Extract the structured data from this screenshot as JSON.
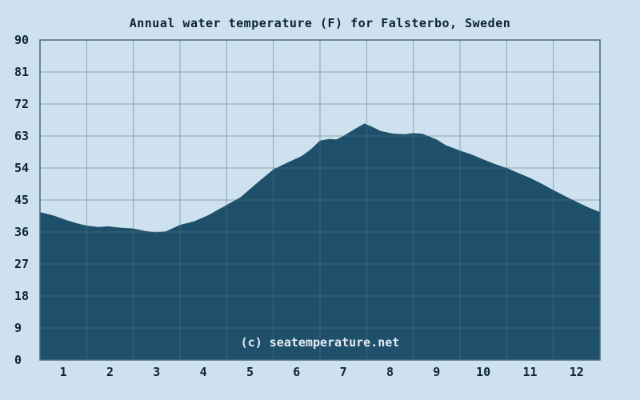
{
  "title": "Annual water temperature (F) for Falsterbo, Sweden",
  "watermark": "(c) seatemperature.net",
  "colors": {
    "page_background": "#cde2ee",
    "area_fill": "#1f506b",
    "gridline": "#5a7382",
    "gridline_opacity": 0.55,
    "frame": "#476b82",
    "label_text": "#0b2433",
    "watermark_text": "#e4ecf2"
  },
  "chart_data": {
    "type": "area",
    "title": "Annual water temperature (F) for Falsterbo, Sweden",
    "unit": "F",
    "xlabel": "",
    "ylabel": "",
    "grid": true,
    "legend": false,
    "xlim": [
      0,
      12
    ],
    "ylim": [
      0,
      90
    ],
    "x_tick_labels": [
      "1",
      "2",
      "3",
      "4",
      "5",
      "6",
      "7",
      "8",
      "9",
      "10",
      "11",
      "12"
    ],
    "y_tick_values": [
      0,
      9,
      18,
      27,
      36,
      45,
      54,
      63,
      72,
      81,
      90
    ],
    "curve_x_months": [
      0,
      0.3,
      0.6,
      0.8,
      1,
      1.25,
      1.45,
      1.75,
      2,
      2.25,
      2.5,
      2.7,
      3,
      3.3,
      3.6,
      4,
      4.3,
      4.6,
      5,
      5.3,
      5.6,
      5.8,
      6,
      6.2,
      6.35,
      6.5,
      6.7,
      6.95,
      7.1,
      7.3,
      7.55,
      7.8,
      8,
      8.2,
      8.5,
      8.7,
      9,
      9.25,
      9.5,
      9.75,
      10,
      10.25,
      10.5,
      10.75,
      11,
      11.25,
      11.5,
      11.75,
      12
    ],
    "curve_temps_f": [
      41.6,
      40.6,
      39.2,
      38.4,
      37.8,
      37.4,
      37.6,
      37.2,
      37.0,
      36.3,
      35.9,
      36.2,
      38.0,
      39.0,
      40.7,
      43.6,
      45.8,
      49.2,
      53.6,
      55.5,
      57.3,
      59.2,
      61.7,
      62.2,
      62.0,
      63.0,
      64.6,
      66.5,
      65.7,
      64.4,
      63.7,
      63.5,
      63.8,
      63.6,
      62.0,
      60.4,
      58.9,
      57.8,
      56.4,
      55.1,
      54.0,
      52.6,
      51.2,
      49.6,
      47.8,
      46.1,
      44.5,
      42.9,
      41.6
    ],
    "min_temp_f": 35.9,
    "max_temp_f": 66.5
  }
}
